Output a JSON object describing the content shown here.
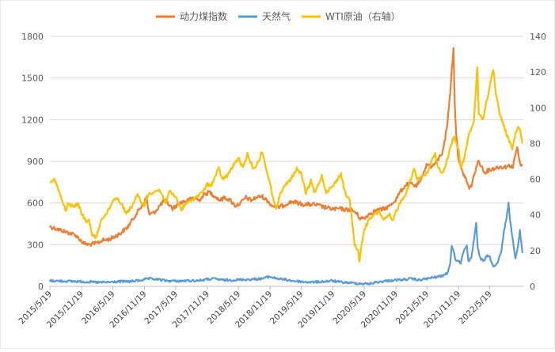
{
  "chart_data": {
    "type": "line",
    "legend_position": "top",
    "grid": "horizontal",
    "x_ticks": [
      "2015/5/19",
      "2015/11/19",
      "2016/5/19",
      "2016/11/19",
      "2017/5/19",
      "2017/11/19",
      "2018/5/19",
      "2018/11/19",
      "2019/5/19",
      "2019/11/19",
      "2020/5/19",
      "2020/11/19",
      "2021/5/19",
      "2021/11/19",
      "2022/5/19"
    ],
    "y_left": {
      "range": [
        0,
        1800
      ],
      "ticks": [
        0,
        300,
        600,
        900,
        1200,
        1500,
        1800
      ]
    },
    "y_right": {
      "range": [
        0,
        140
      ],
      "ticks": [
        0,
        20,
        40,
        60,
        80,
        100,
        120,
        140
      ]
    },
    "series": [
      {
        "name": "动力煤指数",
        "axis": "left",
        "color": "#ED7D31",
        "points": [
          [
            "2015/5/19",
            430
          ],
          [
            "2015/8/1",
            400
          ],
          [
            "2015/10/15",
            370
          ],
          [
            "2015/12/1",
            310
          ],
          [
            "2016/1/1",
            300
          ],
          [
            "2016/2/15",
            310
          ],
          [
            "2016/3/15",
            330
          ],
          [
            "2016/5/1",
            340
          ],
          [
            "2016/7/1",
            380
          ],
          [
            "2016/8/15",
            430
          ],
          [
            "2016/10/1",
            520
          ],
          [
            "2016/11/15",
            600
          ],
          [
            "2016/12/1",
            640
          ],
          [
            "2016/12/15",
            520
          ],
          [
            "2017/1/15",
            530
          ],
          [
            "2017/2/15",
            580
          ],
          [
            "2017/3/15",
            620
          ],
          [
            "2017/4/10",
            590
          ],
          [
            "2017/5/1",
            560
          ],
          [
            "2017/6/1",
            590
          ],
          [
            "2017/7/1",
            610
          ],
          [
            "2017/8/1",
            620
          ],
          [
            "2017/9/1",
            640
          ],
          [
            "2017/10/1",
            620
          ],
          [
            "2017/11/1",
            660
          ],
          [
            "2017/12/1",
            680
          ],
          [
            "2018/1/1",
            650
          ],
          [
            "2018/2/1",
            620
          ],
          [
            "2018/3/1",
            640
          ],
          [
            "2018/4/1",
            620
          ],
          [
            "2018/5/1",
            580
          ],
          [
            "2018/6/1",
            600
          ],
          [
            "2018/7/1",
            640
          ],
          [
            "2018/8/1",
            620
          ],
          [
            "2018/9/1",
            640
          ],
          [
            "2018/10/1",
            650
          ],
          [
            "2018/11/1",
            620
          ],
          [
            "2018/12/1",
            580
          ],
          [
            "2019/1/1",
            570
          ],
          [
            "2019/2/1",
            580
          ],
          [
            "2019/3/1",
            600
          ],
          [
            "2019/4/1",
            610
          ],
          [
            "2019/5/1",
            600
          ],
          [
            "2019/6/1",
            590
          ],
          [
            "2019/7/1",
            590
          ],
          [
            "2019/8/1",
            590
          ],
          [
            "2019/9/1",
            580
          ],
          [
            "2019/10/1",
            570
          ],
          [
            "2019/11/1",
            560
          ],
          [
            "2019/12/1",
            555
          ],
          [
            "2020/1/1",
            560
          ],
          [
            "2020/2/1",
            550
          ],
          [
            "2020/3/1",
            555
          ],
          [
            "2020/4/1",
            530
          ],
          [
            "2020/4/25",
            490
          ],
          [
            "2020/5/19",
            490
          ],
          [
            "2020/6/15",
            520
          ],
          [
            "2020/7/15",
            540
          ],
          [
            "2020/8/15",
            550
          ],
          [
            "2020/9/15",
            560
          ],
          [
            "2020/10/15",
            580
          ],
          [
            "2020/11/15",
            620
          ],
          [
            "2020/12/15",
            680
          ],
          [
            "2021/1/15",
            730
          ],
          [
            "2021/2/15",
            740
          ],
          [
            "2021/3/15",
            720
          ],
          [
            "2021/4/15",
            760
          ],
          [
            "2021/5/1",
            830
          ],
          [
            "2021/5/20",
            880
          ],
          [
            "2021/6/15",
            860
          ],
          [
            "2021/7/15",
            900
          ],
          [
            "2021/8/15",
            960
          ],
          [
            "2021/9/1",
            1060
          ],
          [
            "2021/9/15",
            1180
          ],
          [
            "2021/10/1",
            1400
          ],
          [
            "2021/10/10",
            1560
          ],
          [
            "2021/10/20",
            1710
          ],
          [
            "2021/10/28",
            1300
          ],
          [
            "2021/11/5",
            1100
          ],
          [
            "2021/11/15",
            950
          ],
          [
            "2021/12/1",
            850
          ],
          [
            "2021/12/20",
            800
          ],
          [
            "2022/1/5",
            760
          ],
          [
            "2022/1/20",
            700
          ],
          [
            "2022/2/1",
            730
          ],
          [
            "2022/2/15",
            790
          ],
          [
            "2022/3/1",
            860
          ],
          [
            "2022/3/15",
            900
          ],
          [
            "2022/4/1",
            870
          ],
          [
            "2022/4/15",
            820
          ],
          [
            "2022/5/1",
            830
          ],
          [
            "2022/5/19",
            840
          ],
          [
            "2022/6/15",
            850
          ],
          [
            "2022/7/15",
            860
          ],
          [
            "2022/8/15",
            860
          ],
          [
            "2022/9/15",
            870
          ],
          [
            "2022/10/1",
            860
          ],
          [
            "2022/10/15",
            950
          ],
          [
            "2022/10/25",
            1000
          ],
          [
            "2022/11/5",
            920
          ],
          [
            "2022/11/15",
            860
          ],
          [
            "2022/11/25",
            880
          ]
        ]
      },
      {
        "name": "天然气",
        "axis": "left",
        "color": "#5B9BD5",
        "points": [
          [
            "2015/5/19",
            40
          ],
          [
            "2015/8/1",
            38
          ],
          [
            "2015/11/1",
            35
          ],
          [
            "2016/1/1",
            32
          ],
          [
            "2016/3/1",
            28
          ],
          [
            "2016/5/1",
            30
          ],
          [
            "2016/7/1",
            35
          ],
          [
            "2016/9/1",
            35
          ],
          [
            "2016/11/1",
            45
          ],
          [
            "2016/12/15",
            55
          ],
          [
            "2017/2/1",
            50
          ],
          [
            "2017/4/1",
            40
          ],
          [
            "2017/6/1",
            38
          ],
          [
            "2017/8/1",
            40
          ],
          [
            "2017/10/1",
            42
          ],
          [
            "2017/11/15",
            50
          ],
          [
            "2018/1/1",
            55
          ],
          [
            "2018/2/15",
            45
          ],
          [
            "2018/4/1",
            45
          ],
          [
            "2018/6/1",
            48
          ],
          [
            "2018/8/1",
            50
          ],
          [
            "2018/10/1",
            55
          ],
          [
            "2018/11/15",
            70
          ],
          [
            "2018/12/15",
            60
          ],
          [
            "2019/2/1",
            50
          ],
          [
            "2019/4/1",
            40
          ],
          [
            "2019/6/1",
            32
          ],
          [
            "2019/8/1",
            30
          ],
          [
            "2019/10/1",
            35
          ],
          [
            "2019/11/15",
            40
          ],
          [
            "2020/1/1",
            30
          ],
          [
            "2020/3/1",
            25
          ],
          [
            "2020/5/1",
            20
          ],
          [
            "2020/6/15",
            18
          ],
          [
            "2020/8/1",
            30
          ],
          [
            "2020/10/1",
            40
          ],
          [
            "2020/11/15",
            45
          ],
          [
            "2021/1/1",
            48
          ],
          [
            "2021/2/15",
            55
          ],
          [
            "2021/4/1",
            45
          ],
          [
            "2021/5/19",
            55
          ],
          [
            "2021/7/1",
            65
          ],
          [
            "2021/8/15",
            75
          ],
          [
            "2021/9/15",
            95
          ],
          [
            "2021/10/1",
            170
          ],
          [
            "2021/10/10",
            290
          ],
          [
            "2021/10/20",
            260
          ],
          [
            "2021/11/1",
            190
          ],
          [
            "2021/12/1",
            170
          ],
          [
            "2021/12/15",
            240
          ],
          [
            "2022/1/5",
            300
          ],
          [
            "2022/1/15",
            180
          ],
          [
            "2022/2/1",
            200
          ],
          [
            "2022/2/20",
            370
          ],
          [
            "2022/3/1",
            450
          ],
          [
            "2022/3/10",
            280
          ],
          [
            "2022/3/25",
            200
          ],
          [
            "2022/4/15",
            180
          ],
          [
            "2022/5/1",
            220
          ],
          [
            "2022/5/19",
            210
          ],
          [
            "2022/6/10",
            140
          ],
          [
            "2022/7/1",
            160
          ],
          [
            "2022/7/25",
            250
          ],
          [
            "2022/8/10",
            400
          ],
          [
            "2022/8/25",
            500
          ],
          [
            "2022/9/5",
            600
          ],
          [
            "2022/9/15",
            460
          ],
          [
            "2022/10/1",
            330
          ],
          [
            "2022/10/15",
            200
          ],
          [
            "2022/10/25",
            250
          ],
          [
            "2022/11/10",
            400
          ],
          [
            "2022/11/25",
            240
          ]
        ]
      },
      {
        "name": "WTI原油（右轴）",
        "axis": "right",
        "color": "#FFC000",
        "points": [
          [
            "2015/5/19",
            59
          ],
          [
            "2015/6/15",
            60
          ],
          [
            "2015/7/15",
            52
          ],
          [
            "2015/8/20",
            42
          ],
          [
            "2015/9/1",
            46
          ],
          [
            "2015/10/1",
            45
          ],
          [
            "2015/11/1",
            46
          ],
          [
            "2015/11/19",
            41
          ],
          [
            "2015/12/15",
            36
          ],
          [
            "2016/1/1",
            37
          ],
          [
            "2016/1/20",
            29
          ],
          [
            "2016/2/11",
            27
          ],
          [
            "2016/3/15",
            38
          ],
          [
            "2016/4/15",
            41
          ],
          [
            "2016/5/19",
            48
          ],
          [
            "2016/6/10",
            50
          ],
          [
            "2016/7/15",
            45
          ],
          [
            "2016/8/5",
            41
          ],
          [
            "2016/9/1",
            44
          ],
          [
            "2016/10/10",
            51
          ],
          [
            "2016/11/15",
            45
          ],
          [
            "2016/12/15",
            52
          ],
          [
            "2017/1/15",
            53
          ],
          [
            "2017/2/15",
            54
          ],
          [
            "2017/3/22",
            47
          ],
          [
            "2017/4/15",
            53
          ],
          [
            "2017/5/19",
            50
          ],
          [
            "2017/6/21",
            43
          ],
          [
            "2017/7/15",
            46
          ],
          [
            "2017/8/15",
            48
          ],
          [
            "2017/9/15",
            50
          ],
          [
            "2017/10/15",
            52
          ],
          [
            "2017/11/19",
            57
          ],
          [
            "2017/12/15",
            57
          ],
          [
            "2018/1/25",
            66
          ],
          [
            "2018/2/15",
            60
          ],
          [
            "2018/3/15",
            62
          ],
          [
            "2018/4/15",
            67
          ],
          [
            "2018/5/19",
            72
          ],
          [
            "2018/6/15",
            66
          ],
          [
            "2018/7/10",
            74
          ],
          [
            "2018/8/15",
            66
          ],
          [
            "2018/9/15",
            70
          ],
          [
            "2018/10/3",
            76
          ],
          [
            "2018/10/25",
            67
          ],
          [
            "2018/11/19",
            57
          ],
          [
            "2018/12/24",
            43
          ],
          [
            "2019/1/20",
            53
          ],
          [
            "2019/2/20",
            57
          ],
          [
            "2019/3/20",
            60
          ],
          [
            "2019/4/23",
            66
          ],
          [
            "2019/5/19",
            63
          ],
          [
            "2019/6/15",
            52
          ],
          [
            "2019/7/15",
            59
          ],
          [
            "2019/8/5",
            52
          ],
          [
            "2019/9/16",
            62
          ],
          [
            "2019/10/10",
            53
          ],
          [
            "2019/11/19",
            56
          ],
          [
            "2019/12/15",
            60
          ],
          [
            "2020/1/6",
            63
          ],
          [
            "2020/1/30",
            52
          ],
          [
            "2020/2/25",
            48
          ],
          [
            "2020/3/15",
            32
          ],
          [
            "2020/3/25",
            23
          ],
          [
            "2020/4/15",
            20
          ],
          [
            "2020/4/20",
            13
          ],
          [
            "2020/4/25",
            17
          ],
          [
            "2020/5/19",
            32
          ],
          [
            "2020/6/15",
            37
          ],
          [
            "2020/7/15",
            40
          ],
          [
            "2020/8/15",
            42
          ],
          [
            "2020/9/10",
            37
          ],
          [
            "2020/10/15",
            40
          ],
          [
            "2020/11/1",
            36
          ],
          [
            "2020/11/19",
            42
          ],
          [
            "2020/12/15",
            47
          ],
          [
            "2021/1/15",
            52
          ],
          [
            "2021/2/15",
            60
          ],
          [
            "2021/3/5",
            66
          ],
          [
            "2021/3/25",
            60
          ],
          [
            "2021/4/20",
            62
          ],
          [
            "2021/5/19",
            63
          ],
          [
            "2021/6/15",
            70
          ],
          [
            "2021/7/5",
            75
          ],
          [
            "2021/7/20",
            67
          ],
          [
            "2021/8/20",
            63
          ],
          [
            "2021/9/15",
            72
          ],
          [
            "2021/10/15",
            82
          ],
          [
            "2021/10/26",
            84
          ],
          [
            "2021/11/19",
            76
          ],
          [
            "2021/12/1",
            66
          ],
          [
            "2021/12/20",
            71
          ],
          [
            "2022/1/15",
            84
          ],
          [
            "2022/2/15",
            92
          ],
          [
            "2022/3/8",
            123
          ],
          [
            "2022/3/16",
            96
          ],
          [
            "2022/4/11",
            94
          ],
          [
            "2022/5/1",
            104
          ],
          [
            "2022/5/19",
            112
          ],
          [
            "2022/6/8",
            122
          ],
          [
            "2022/6/25",
            107
          ],
          [
            "2022/7/15",
            97
          ],
          [
            "2022/8/15",
            88
          ],
          [
            "2022/9/26",
            77
          ],
          [
            "2022/10/15",
            85
          ],
          [
            "2022/11/1",
            90
          ],
          [
            "2022/11/15",
            86
          ],
          [
            "2022/11/25",
            80
          ]
        ]
      }
    ]
  }
}
